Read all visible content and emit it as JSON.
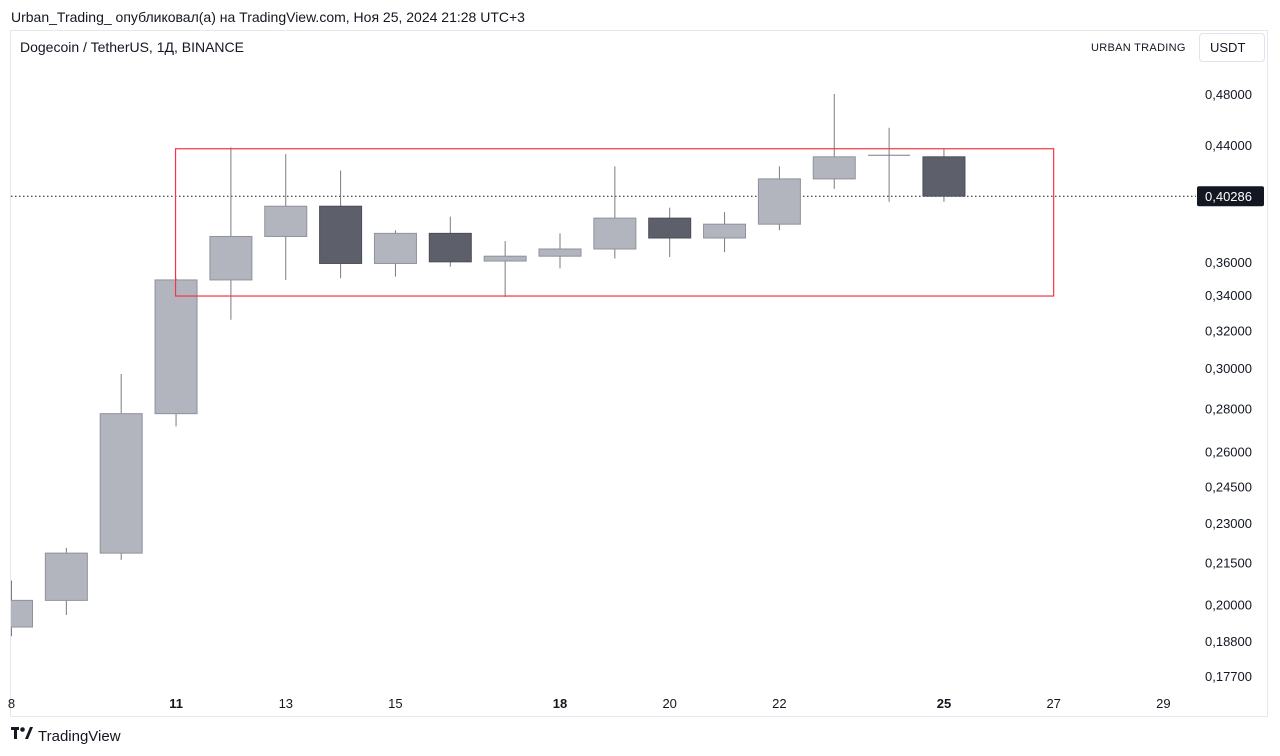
{
  "published_line": "Urban_Trading_ опубликовал(а) на TradingView.com, Ноя 25, 2024 21:28 UTC+3",
  "symbol_title": "Dogecoin / TetherUS, 1Д, BINANCE",
  "watermark": "URBAN TRADING",
  "currency": "USDT",
  "brand": "TradingView",
  "icons": {
    "logo": "tradingview-logo-icon"
  },
  "colors": {
    "up_candle": "#b2b5be",
    "down_candle": "#5d606b",
    "wick": "#787b86",
    "range_box": "#f23645",
    "price_label_bg": "#131722"
  },
  "chart_data": {
    "type": "candlestick",
    "title": "Dogecoin / TetherUS, 1Д, BINANCE",
    "ylim": [
      0.177,
      0.5
    ],
    "y_ticks": [
      "0,48000",
      "0,44000",
      "0,36000",
      "0,34000",
      "0,32000",
      "0,30000",
      "0,28000",
      "0,26000",
      "0,24500",
      "0,23000",
      "0,21500",
      "0,20000",
      "0,18800",
      "0,17700"
    ],
    "x_ticks": [
      {
        "label": "8",
        "day": 8,
        "bold": false
      },
      {
        "label": "11",
        "day": 11,
        "bold": true
      },
      {
        "label": "13",
        "day": 13,
        "bold": false
      },
      {
        "label": "15",
        "day": 15,
        "bold": false
      },
      {
        "label": "18",
        "day": 18,
        "bold": true
      },
      {
        "label": "20",
        "day": 20,
        "bold": false
      },
      {
        "label": "22",
        "day": 22,
        "bold": false
      },
      {
        "label": "25",
        "day": 25,
        "bold": true
      },
      {
        "label": "27",
        "day": 27,
        "bold": false
      },
      {
        "label": "29",
        "day": 29,
        "bold": false
      }
    ],
    "last_price": 0.40286,
    "last_price_label": "0,40286",
    "candles": [
      {
        "day": 8,
        "open": 0.1925,
        "high": 0.2085,
        "low": 0.1895,
        "close": 0.2015
      },
      {
        "day": 9,
        "open": 0.2015,
        "high": 0.2205,
        "low": 0.1965,
        "close": 0.2185
      },
      {
        "day": 10,
        "open": 0.2185,
        "high": 0.297,
        "low": 0.216,
        "close": 0.2775
      },
      {
        "day": 11,
        "open": 0.2775,
        "high": 0.35,
        "low": 0.2715,
        "close": 0.349
      },
      {
        "day": 12,
        "open": 0.349,
        "high": 0.438,
        "low": 0.326,
        "close": 0.376
      },
      {
        "day": 13,
        "open": 0.376,
        "high": 0.433,
        "low": 0.349,
        "close": 0.396
      },
      {
        "day": 14,
        "open": 0.396,
        "high": 0.421,
        "low": 0.35,
        "close": 0.359
      },
      {
        "day": 15,
        "open": 0.359,
        "high": 0.38,
        "low": 0.351,
        "close": 0.378
      },
      {
        "day": 16,
        "open": 0.378,
        "high": 0.389,
        "low": 0.357,
        "close": 0.36
      },
      {
        "day": 17,
        "open": 0.3605,
        "high": 0.373,
        "low": 0.339,
        "close": 0.3635
      },
      {
        "day": 18,
        "open": 0.3635,
        "high": 0.378,
        "low": 0.356,
        "close": 0.368
      },
      {
        "day": 19,
        "open": 0.368,
        "high": 0.424,
        "low": 0.362,
        "close": 0.388
      },
      {
        "day": 20,
        "open": 0.388,
        "high": 0.395,
        "low": 0.363,
        "close": 0.375
      },
      {
        "day": 21,
        "open": 0.375,
        "high": 0.392,
        "low": 0.366,
        "close": 0.384
      },
      {
        "day": 22,
        "open": 0.384,
        "high": 0.424,
        "low": 0.38,
        "close": 0.415
      },
      {
        "day": 23,
        "open": 0.415,
        "high": 0.48,
        "low": 0.408,
        "close": 0.431
      },
      {
        "day": 24,
        "open": 0.4316,
        "high": 0.453,
        "low": 0.399,
        "close": 0.4322
      },
      {
        "day": 25,
        "open": 0.431,
        "high": 0.437,
        "low": 0.399,
        "close": 0.4029
      }
    ],
    "annotations": [
      {
        "type": "rectangle",
        "day_from": 11,
        "day_to": 27,
        "price_low": 0.3395,
        "price_high": 0.437
      }
    ]
  }
}
